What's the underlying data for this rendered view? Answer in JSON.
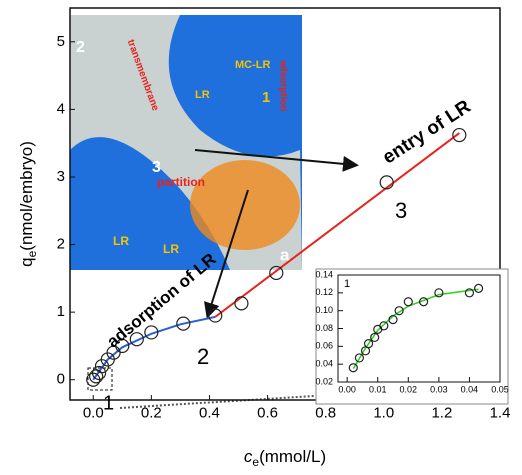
{
  "chart_data": [
    {
      "type": "scatter",
      "x_label": {
        "base": "c",
        "sub": "e",
        "unit": "(mmol/L)"
      },
      "y_label": {
        "base": "q",
        "sub": "e",
        "unit": "(nmol/embryo)"
      },
      "xlim": [
        -0.08,
        1.4
      ],
      "ylim": [
        -0.3,
        5.5
      ],
      "xticks": [
        {
          "value": 0,
          "label": "0.0"
        },
        0.2,
        0.4,
        0.6,
        0.8,
        {
          "value": 1,
          "label": "1.0"
        },
        1.2,
        1.4
      ],
      "yticks": [
        0,
        1,
        2,
        3,
        4,
        5
      ],
      "series": [
        {
          "style": "points",
          "color": "#222222",
          "x": [
            0,
            0.01,
            0.02,
            0.03,
            0.05,
            0.07,
            0.1,
            0.15,
            0.2,
            0.31,
            0.42,
            0.51,
            0.63,
            1.01,
            1.26
          ],
          "values": [
            0,
            0.05,
            0.1,
            0.2,
            0.3,
            0.4,
            0.5,
            0.6,
            0.7,
            0.83,
            0.95,
            1.13,
            1.58,
            2.92,
            3.62
          ]
        },
        {
          "style": "line",
          "color": "#2a5fd0",
          "x": [
            0,
            0.02,
            0.05,
            0.1,
            0.2,
            0.3,
            0.42
          ],
          "values": [
            0,
            0.12,
            0.3,
            0.48,
            0.68,
            0.82,
            0.93
          ]
        },
        {
          "style": "line",
          "color": "#e8221c",
          "x": [
            0.42,
            1.26
          ],
          "values": [
            0.93,
            3.65
          ]
        }
      ],
      "annotations": [
        "entry of LR",
        "adsorption of LR",
        "1",
        "2",
        "3"
      ],
      "image_labels": [
        "2",
        "MC-LR",
        "LR",
        "1",
        "adsorption",
        "transmembrane",
        "3",
        "partition",
        "LR",
        "LR",
        "a"
      ]
    },
    {
      "type": "scatter",
      "xlim": [
        -0.003,
        0.05
      ],
      "ylim": [
        0.02,
        0.14
      ],
      "xticks": [
        {
          "value": 0,
          "label": "0.00"
        },
        0.01,
        0.02,
        0.03,
        0.04,
        0.05
      ],
      "yticks": [
        0.02,
        0.04,
        0.06,
        0.08,
        {
          "value": 0.1,
          "label": "0.10"
        },
        0.12,
        0.14
      ],
      "series": [
        {
          "style": "points",
          "color": "#222222",
          "x": [
            0.002,
            0.004,
            0.006,
            0.007,
            0.009,
            0.01,
            0.012,
            0.015,
            0.017,
            0.02,
            0.025,
            0.03,
            0.04,
            0.043
          ],
          "values": [
            0.036,
            0.047,
            0.055,
            0.063,
            0.07,
            0.079,
            0.083,
            0.09,
            0.1,
            0.11,
            0.11,
            0.12,
            0.12,
            0.125
          ]
        },
        {
          "style": "line",
          "color": "#2bd11f",
          "x": [
            0.002,
            0.006,
            0.01,
            0.015,
            0.02,
            0.03,
            0.043
          ],
          "values": [
            0.035,
            0.058,
            0.078,
            0.094,
            0.105,
            0.118,
            0.124
          ]
        }
      ],
      "annotations": [
        "1"
      ]
    }
  ]
}
